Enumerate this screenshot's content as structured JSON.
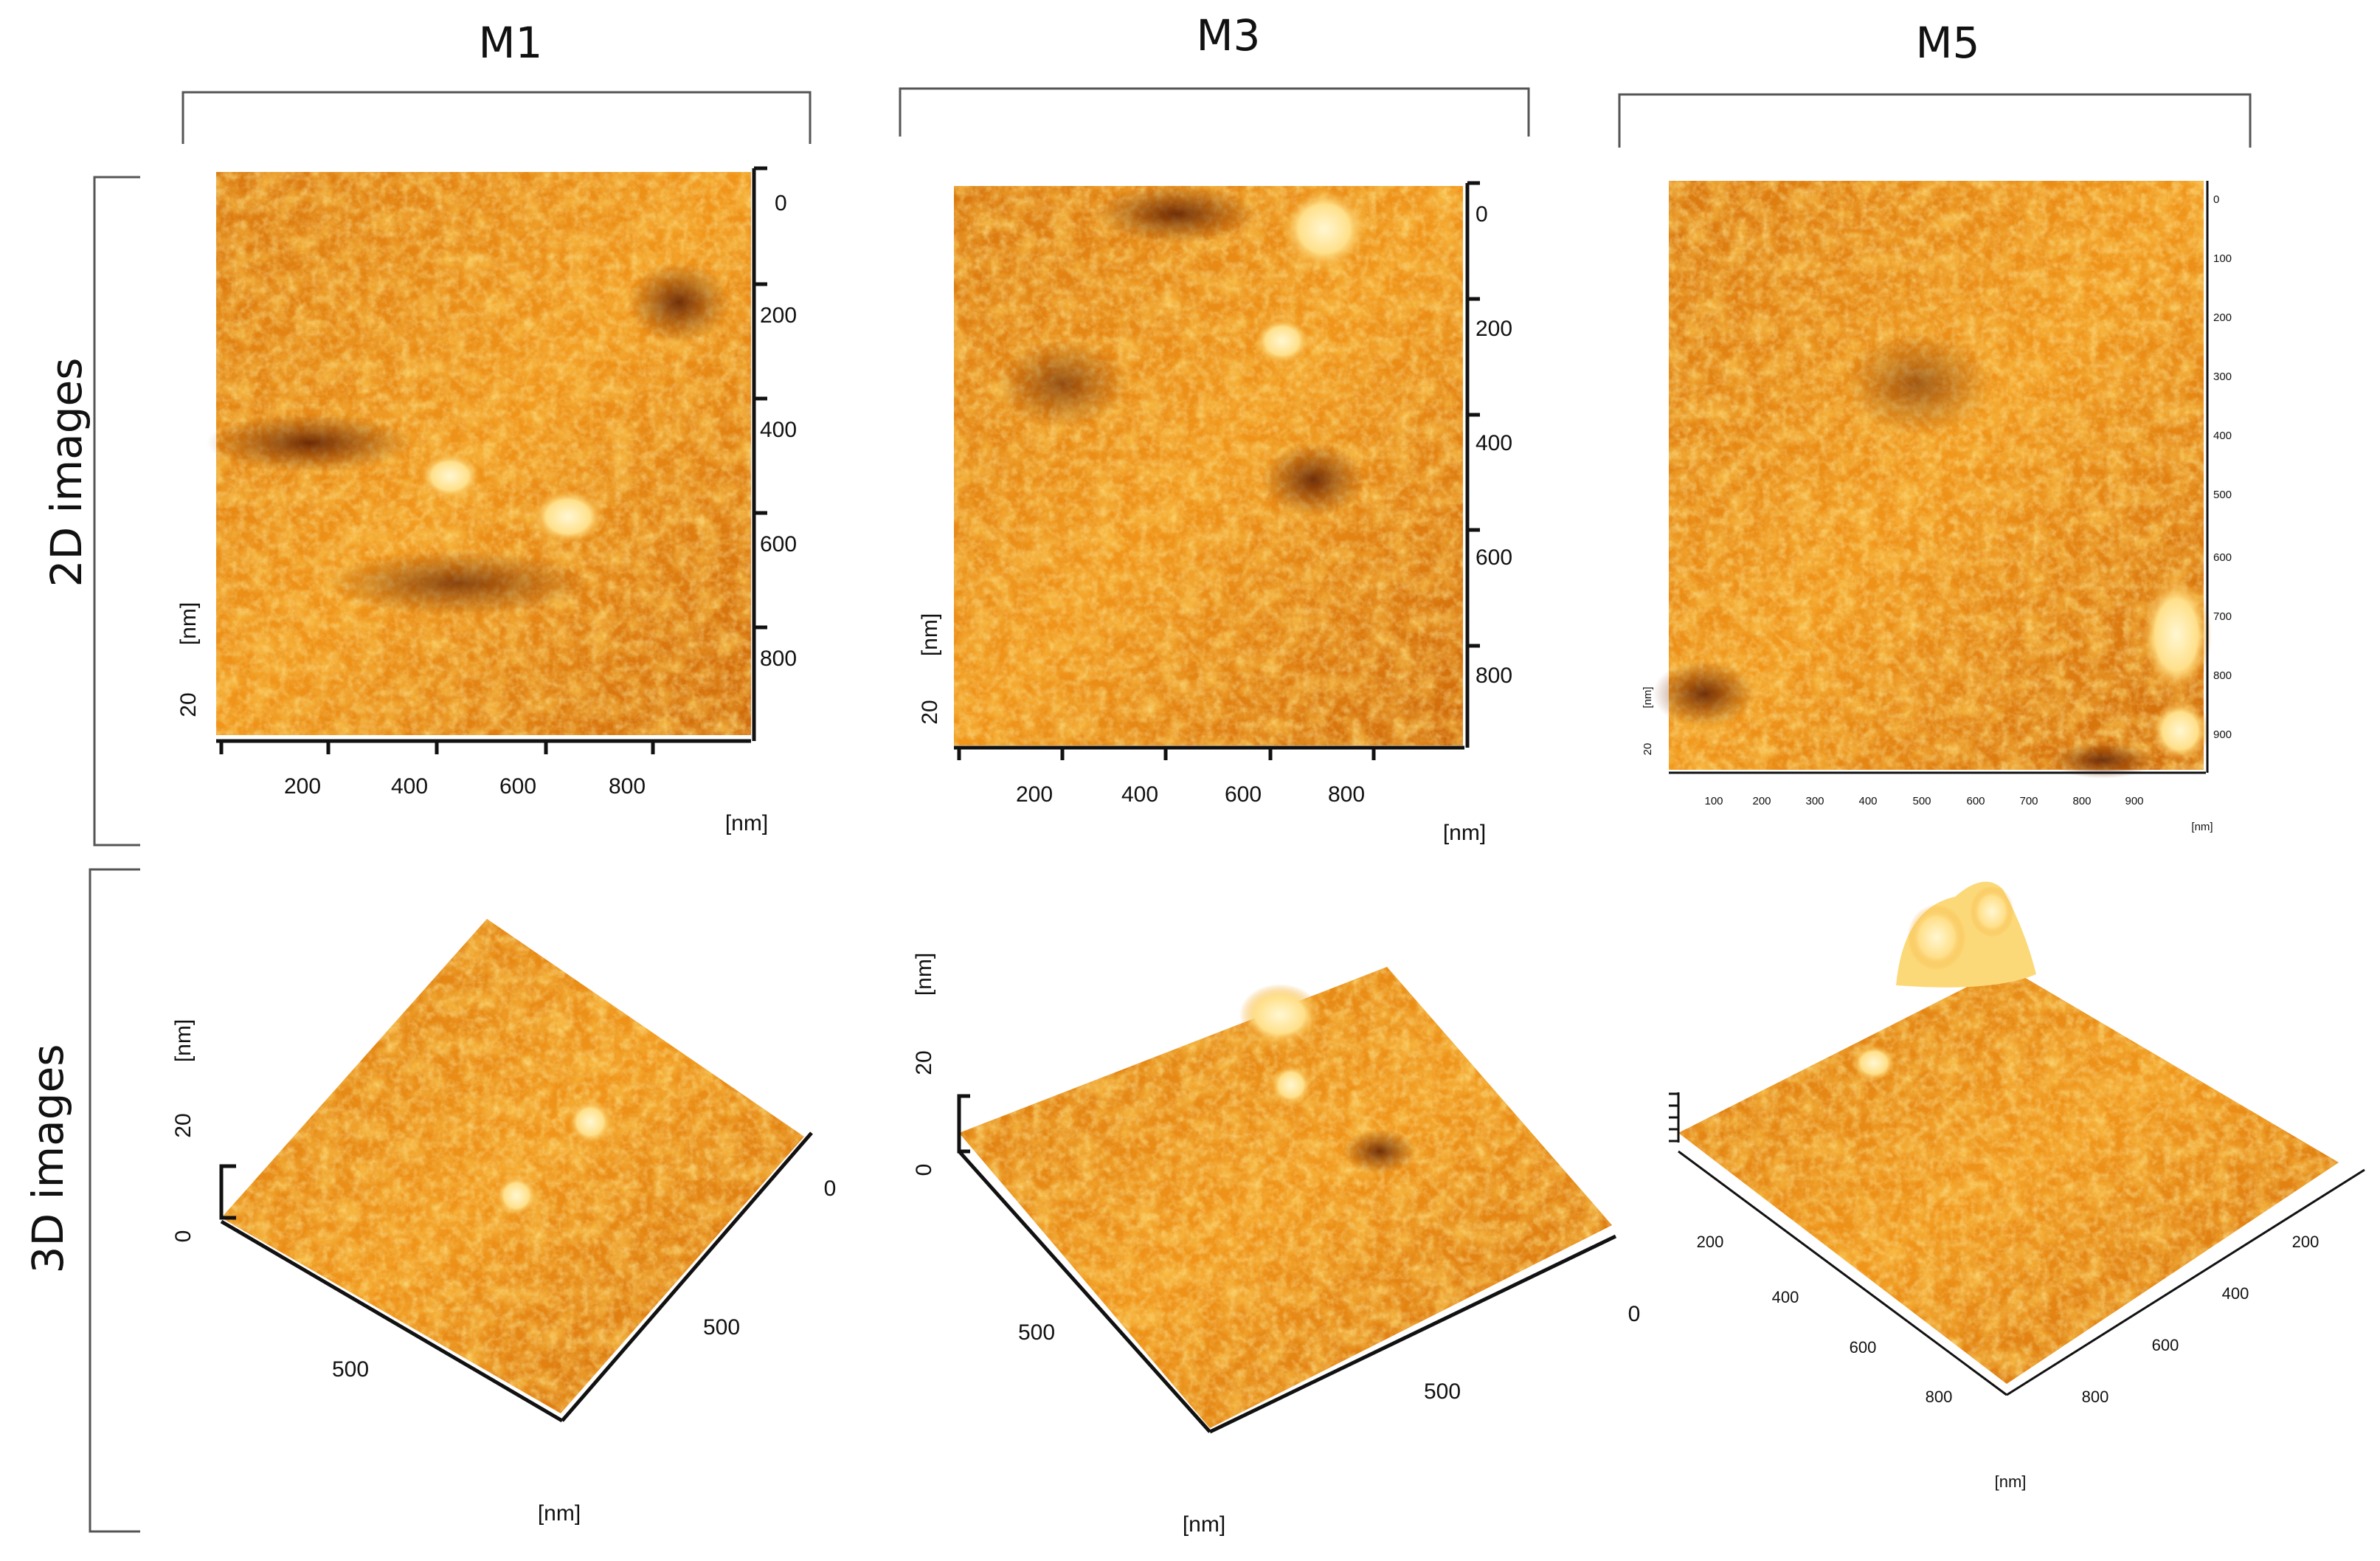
{
  "figure": {
    "columns": [
      {
        "id": "m1",
        "title": "M1"
      },
      {
        "id": "m3",
        "title": "M3"
      },
      {
        "id": "m5",
        "title": "M5"
      }
    ],
    "rows": {
      "two_d": "2D images",
      "three_d": "3D images"
    }
  },
  "panels2d": {
    "m1": {
      "x_ticks": [
        "200",
        "400",
        "600",
        "800"
      ],
      "y_ticks": [
        "0",
        "200",
        "400",
        "600",
        "800"
      ],
      "x_unit": "[nm]",
      "z_unit": "[nm]",
      "z_value": "20"
    },
    "m3": {
      "x_ticks": [
        "200",
        "400",
        "600",
        "800"
      ],
      "y_ticks": [
        "0",
        "200",
        "400",
        "600",
        "800"
      ],
      "x_unit": "[nm]",
      "z_unit": "[nm]",
      "z_value": "20"
    },
    "m5": {
      "x_ticks": [
        "100",
        "200",
        "300",
        "400",
        "500",
        "600",
        "700",
        "800",
        "900"
      ],
      "y_ticks": [
        "0",
        "100",
        "200",
        "300",
        "400",
        "500",
        "600",
        "700",
        "800",
        "900"
      ],
      "x_unit": "[nm]",
      "z_unit": "[nm]",
      "z_value": "20"
    }
  },
  "panels3d": {
    "m1": {
      "z_unit": "[nm]",
      "z_ticks": [
        "0",
        "20"
      ],
      "front_ticks": [
        "500"
      ],
      "right_ticks": [
        "0",
        "500"
      ],
      "unit": "[nm]"
    },
    "m3": {
      "z_unit": "[nm]",
      "z_ticks": [
        "0",
        "20"
      ],
      "front_ticks": [
        "500"
      ],
      "right_ticks": [
        "0",
        "500"
      ],
      "unit": "[nm]"
    },
    "m5": {
      "z_unit": "",
      "front_ticks": [
        "200",
        "400",
        "600",
        "800"
      ],
      "right_ticks": [
        "200",
        "400",
        "600",
        "800"
      ],
      "unit": "[nm]"
    }
  },
  "colors": {
    "afm_dark": "#5a1a00",
    "afm_mid": "#c8640a",
    "afm_bright": "#f5a21e",
    "afm_highlight": "#fff2b8"
  }
}
